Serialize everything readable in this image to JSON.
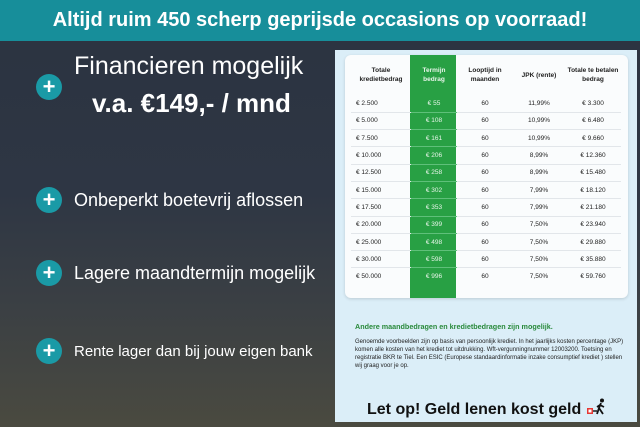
{
  "banner": {
    "text": "Altijd ruim 450 scherp geprijsde occasions op voorraad!"
  },
  "features": [
    {
      "label": "Financieren mogelijk",
      "sub": "v.a. €149,- / mnd"
    },
    {
      "label": "Onbeperkt boetevrij aflossen"
    },
    {
      "label": "Lagere maandtermijn mogelijk"
    },
    {
      "label": "Rente lager dan bij jouw eigen bank"
    }
  ],
  "table": {
    "headers": [
      "Totale kredietbedrag",
      "Termijn bedrag",
      "Looptijd in maanden",
      "JPK (rente)",
      "Totale te betalen bedrag"
    ],
    "rows": [
      [
        "€ 2.500",
        "€ 55",
        "60",
        "11,99%",
        "€ 3.300"
      ],
      [
        "€ 5.000",
        "€ 108",
        "60",
        "10,99%",
        "€ 6.480"
      ],
      [
        "€ 7.500",
        "€ 161",
        "60",
        "10,99%",
        "€ 9.660"
      ],
      [
        "€ 10.000",
        "€ 206",
        "60",
        "8,99%",
        "€ 12.360"
      ],
      [
        "€ 12.500",
        "€ 258",
        "60",
        "8,99%",
        "€ 15.480"
      ],
      [
        "€ 15.000",
        "€ 302",
        "60",
        "7,99%",
        "€ 18.120"
      ],
      [
        "€ 17.500",
        "€ 353",
        "60",
        "7,99%",
        "€ 21.180"
      ],
      [
        "€ 20.000",
        "€ 399",
        "60",
        "7,50%",
        "€ 23.940"
      ],
      [
        "€ 25.000",
        "€ 498",
        "60",
        "7,50%",
        "€ 29.880"
      ],
      [
        "€ 30.000",
        "€ 598",
        "60",
        "7,50%",
        "€ 35.880"
      ],
      [
        "€ 50.000",
        "€ 996",
        "60",
        "7,50%",
        "€ 59.760"
      ]
    ]
  },
  "other": "Andere maandbedragen en kredietbedragen zijn mogelijk.",
  "disclaimer": "Genoemde voorbeelden zijn op basis van persoonlijk krediet. In het jaarlijks kosten percentage (JKP) komen alle kosten van het krediet tot uitdrukking. Wft-vergunningnummer 12003200. Toetsing en registratie BKR te Tiel. Een ESIC (Europese standaardinformatie inzake consumptief krediet ) stellen wij graag voor je op.",
  "warning": "Let op! Geld lenen kost geld",
  "colors": {
    "banner": "#178e9a",
    "accent_green": "#28a044",
    "plus": "#1a9aa6"
  }
}
